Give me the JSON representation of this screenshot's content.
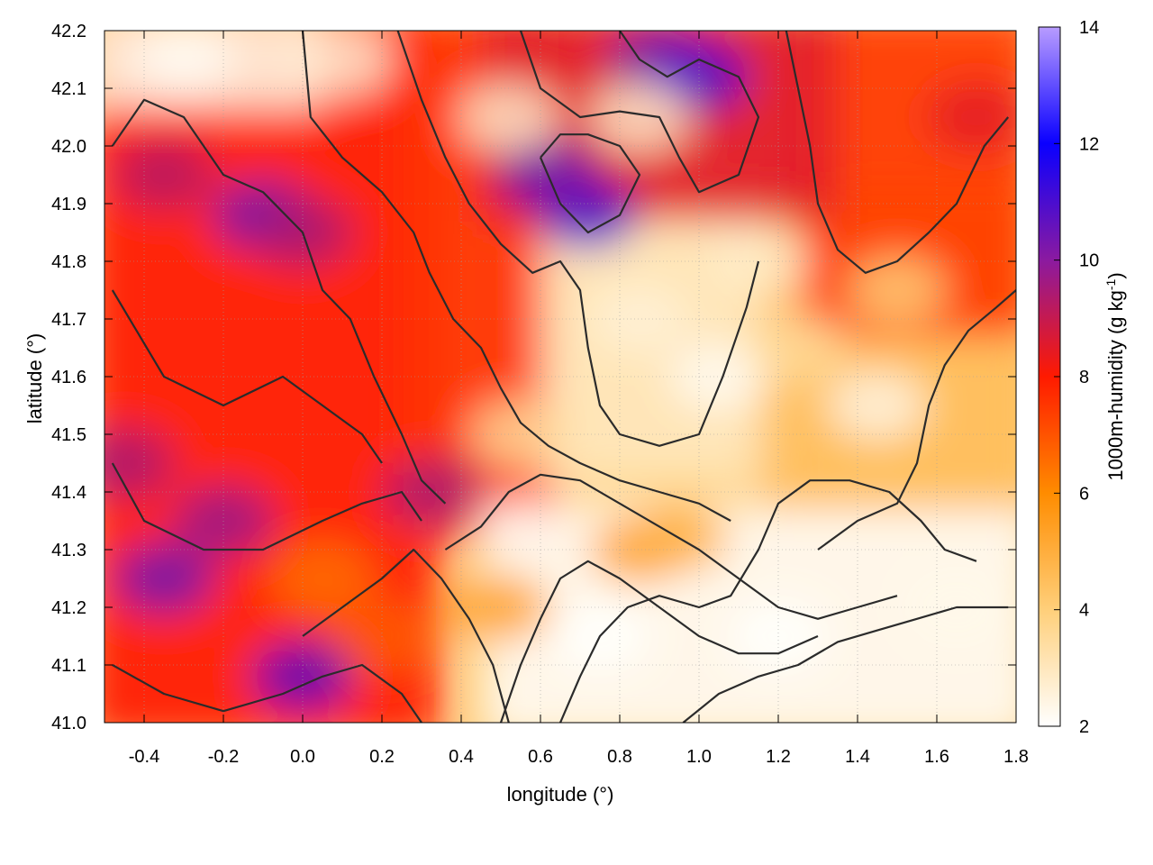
{
  "chart_data": {
    "type": "heatmap",
    "title": "",
    "xlabel": "longitude (°)",
    "ylabel": "latitude (°)",
    "xlim": [
      -0.5,
      1.8
    ],
    "ylim": [
      41.0,
      42.2
    ],
    "x_ticks": [
      -0.4,
      -0.2,
      0.0,
      0.2,
      0.4,
      0.6,
      0.8,
      1.0,
      1.2,
      1.4,
      1.6,
      1.8
    ],
    "x_tick_labels": [
      "-0.4",
      "-0.2",
      "0.0",
      "0.2",
      "0.4",
      "0.6",
      "0.8",
      "1.0",
      "1.2",
      "1.4",
      "1.6",
      "1.8"
    ],
    "y_ticks": [
      41.0,
      41.1,
      41.2,
      41.3,
      41.4,
      41.5,
      41.6,
      41.7,
      41.8,
      41.9,
      42.0,
      42.1,
      42.2
    ],
    "y_tick_labels": [
      "41.0",
      "41.1",
      "41.2",
      "41.3",
      "41.4",
      "41.5",
      "41.6",
      "41.7",
      "41.8",
      "41.9",
      "42.0",
      "42.1",
      "42.2"
    ],
    "grid": true,
    "colorbar": {
      "label_main": "1000m-humidity (g kg",
      "label_sup": "-1",
      "label_end": ")",
      "range": [
        2,
        14
      ],
      "ticks": [
        2,
        4,
        6,
        8,
        10,
        12,
        14
      ],
      "tick_labels": [
        "2",
        "4",
        "6",
        "8",
        "10",
        "12",
        "14"
      ],
      "colors": [
        {
          "v": 2,
          "c": "#ffffff"
        },
        {
          "v": 4,
          "c": "#ffcf7a"
        },
        {
          "v": 6,
          "c": "#ff8c00"
        },
        {
          "v": 8,
          "c": "#ff1a00"
        },
        {
          "v": 10,
          "c": "#8b1aa0"
        },
        {
          "v": 12,
          "c": "#0a00ff"
        },
        {
          "v": 14,
          "c": "#b89cff"
        }
      ]
    },
    "field_regions": [
      {
        "lon": [
          -0.5,
          0.3
        ],
        "lat": [
          41.0,
          42.2
        ],
        "level": 8.0
      },
      {
        "lon": [
          0.3,
          0.6
        ],
        "lat": [
          41.35,
          42.2
        ],
        "level": 7.6
      },
      {
        "lon": [
          0.5,
          1.8
        ],
        "lat": [
          41.0,
          41.35
        ],
        "level": 2.2
      },
      {
        "lon": [
          0.65,
          1.2
        ],
        "lat": [
          41.45,
          41.9
        ],
        "level": 3.0
      },
      {
        "lon": [
          1.2,
          1.8
        ],
        "lat": [
          41.4,
          41.9
        ],
        "level": 4.5
      },
      {
        "lon": [
          1.3,
          1.8
        ],
        "lat": [
          41.7,
          42.2
        ],
        "level": 7.5
      },
      {
        "lon": [
          0.5,
          1.3
        ],
        "lat": [
          41.9,
          42.2
        ],
        "level": 8.5
      },
      {
        "lon": [
          -0.5,
          0.0
        ],
        "lat": [
          42.1,
          42.2
        ],
        "level": 2.5
      }
    ],
    "field_features": [
      {
        "lon": -0.35,
        "lat": 41.25,
        "level": 10.5
      },
      {
        "lon": -0.2,
        "lat": 41.35,
        "level": 9.8
      },
      {
        "lon": -0.45,
        "lat": 41.45,
        "level": 9.5
      },
      {
        "lon": 0.0,
        "lat": 41.08,
        "level": 10.8
      },
      {
        "lon": -0.1,
        "lat": 41.88,
        "level": 10.5
      },
      {
        "lon": 0.0,
        "lat": 41.85,
        "level": 9.5
      },
      {
        "lon": -0.35,
        "lat": 41.95,
        "level": 9.3
      },
      {
        "lon": 0.33,
        "lat": 41.4,
        "level": 9.5
      },
      {
        "lon": 0.72,
        "lat": 41.88,
        "level": 11.0
      },
      {
        "lon": 0.62,
        "lat": 41.95,
        "level": 10.5
      },
      {
        "lon": 0.9,
        "lat": 42.15,
        "level": 10.3
      },
      {
        "lon": 1.0,
        "lat": 42.12,
        "level": 11.0
      },
      {
        "lon": 1.7,
        "lat": 42.05,
        "level": 8.5
      },
      {
        "lon": -0.3,
        "lat": 42.15,
        "level": 2.2
      },
      {
        "lon": 0.1,
        "lat": 42.15,
        "level": 2.6
      },
      {
        "lon": 0.85,
        "lat": 42.05,
        "level": 2.8
      },
      {
        "lon": 0.52,
        "lat": 42.05,
        "level": 2.8
      },
      {
        "lon": 1.05,
        "lat": 41.6,
        "level": 2.2
      },
      {
        "lon": 0.85,
        "lat": 41.7,
        "level": 2.6
      },
      {
        "lon": 1.45,
        "lat": 41.55,
        "level": 2.4
      },
      {
        "lon": 1.2,
        "lat": 41.15,
        "level": 2.0
      },
      {
        "lon": 0.75,
        "lat": 41.15,
        "level": 2.0
      },
      {
        "lon": 1.65,
        "lat": 41.2,
        "level": 2.3
      },
      {
        "lon": 0.5,
        "lat": 41.2,
        "level": 5.5
      },
      {
        "lon": 0.85,
        "lat": 41.3,
        "level": 5.5
      },
      {
        "lon": 0.95,
        "lat": 41.32,
        "level": 5.0
      },
      {
        "lon": 1.15,
        "lat": 41.8,
        "level": 2.8
      },
      {
        "lon": 1.25,
        "lat": 41.65,
        "level": 3.5
      },
      {
        "lon": 1.5,
        "lat": 41.75,
        "level": 4.0
      },
      {
        "lon": 0.05,
        "lat": 41.25,
        "level": 6.5
      },
      {
        "lon": 0.2,
        "lat": 41.15,
        "level": 6.8
      },
      {
        "lon": 0.55,
        "lat": 41.5,
        "level": 3.5
      }
    ],
    "contours": [
      [
        [
          -0.48,
          41.45
        ],
        [
          -0.4,
          41.35
        ],
        [
          -0.25,
          41.3
        ],
        [
          -0.1,
          41.3
        ],
        [
          0.05,
          41.35
        ],
        [
          0.15,
          41.38
        ],
        [
          0.25,
          41.4
        ],
        [
          0.3,
          41.35
        ]
      ],
      [
        [
          -0.48,
          41.75
        ],
        [
          -0.35,
          41.6
        ],
        [
          -0.2,
          41.55
        ],
        [
          -0.05,
          41.6
        ],
        [
          0.05,
          41.55
        ],
        [
          0.15,
          41.5
        ],
        [
          0.2,
          41.45
        ]
      ],
      [
        [
          -0.48,
          42.0
        ],
        [
          -0.4,
          42.08
        ],
        [
          -0.3,
          42.05
        ],
        [
          -0.2,
          41.95
        ],
        [
          -0.1,
          41.92
        ],
        [
          0.0,
          41.85
        ],
        [
          0.05,
          41.75
        ],
        [
          0.12,
          41.7
        ],
        [
          0.18,
          41.6
        ],
        [
          0.25,
          41.5
        ],
        [
          0.3,
          41.42
        ],
        [
          0.36,
          41.38
        ]
      ],
      [
        [
          0.0,
          42.2
        ],
        [
          0.02,
          42.05
        ],
        [
          0.1,
          41.98
        ],
        [
          0.2,
          41.92
        ],
        [
          0.28,
          41.85
        ],
        [
          0.32,
          41.78
        ],
        [
          0.38,
          41.7
        ],
        [
          0.45,
          41.65
        ],
        [
          0.5,
          41.58
        ],
        [
          0.55,
          41.52
        ],
        [
          0.62,
          41.48
        ],
        [
          0.7,
          41.45
        ],
        [
          0.8,
          41.42
        ],
        [
          0.9,
          41.4
        ],
        [
          1.0,
          41.38
        ],
        [
          1.08,
          41.35
        ]
      ],
      [
        [
          0.24,
          42.2
        ],
        [
          0.3,
          42.08
        ],
        [
          0.36,
          41.98
        ],
        [
          0.42,
          41.9
        ],
        [
          0.5,
          41.83
        ],
        [
          0.58,
          41.78
        ],
        [
          0.65,
          41.8
        ],
        [
          0.7,
          41.75
        ],
        [
          0.72,
          41.65
        ],
        [
          0.75,
          41.55
        ],
        [
          0.8,
          41.5
        ],
        [
          0.9,
          41.48
        ],
        [
          1.0,
          41.5
        ],
        [
          1.06,
          41.6
        ],
        [
          1.12,
          41.72
        ],
        [
          1.15,
          41.8
        ]
      ],
      [
        [
          0.36,
          41.3
        ],
        [
          0.45,
          41.34
        ],
        [
          0.52,
          41.4
        ],
        [
          0.6,
          41.43
        ],
        [
          0.7,
          41.42
        ],
        [
          0.8,
          41.38
        ],
        [
          0.9,
          41.34
        ],
        [
          1.0,
          41.3
        ],
        [
          1.1,
          41.25
        ],
        [
          1.2,
          41.2
        ],
        [
          1.3,
          41.18
        ],
        [
          1.4,
          41.2
        ],
        [
          1.5,
          41.22
        ]
      ],
      [
        [
          0.5,
          41.0
        ],
        [
          0.55,
          41.1
        ],
        [
          0.6,
          41.18
        ],
        [
          0.65,
          41.25
        ],
        [
          0.72,
          41.28
        ],
        [
          0.8,
          41.25
        ],
        [
          0.9,
          41.2
        ],
        [
          1.0,
          41.15
        ],
        [
          1.1,
          41.12
        ],
        [
          1.2,
          41.12
        ],
        [
          1.3,
          41.15
        ]
      ],
      [
        [
          0.65,
          41.0
        ],
        [
          0.7,
          41.08
        ],
        [
          0.75,
          41.15
        ],
        [
          0.82,
          41.2
        ],
        [
          0.9,
          41.22
        ],
        [
          1.0,
          41.2
        ],
        [
          1.08,
          41.22
        ],
        [
          1.15,
          41.3
        ],
        [
          1.2,
          41.38
        ],
        [
          1.28,
          41.42
        ],
        [
          1.38,
          41.42
        ],
        [
          1.48,
          41.4
        ],
        [
          1.56,
          41.35
        ],
        [
          1.62,
          41.3
        ],
        [
          1.7,
          41.28
        ]
      ],
      [
        [
          0.96,
          41.0
        ],
        [
          1.05,
          41.05
        ],
        [
          1.15,
          41.08
        ],
        [
          1.25,
          41.1
        ],
        [
          1.35,
          41.14
        ],
        [
          1.45,
          41.16
        ],
        [
          1.55,
          41.18
        ],
        [
          1.65,
          41.2
        ],
        [
          1.78,
          41.2
        ]
      ],
      [
        [
          1.3,
          41.3
        ],
        [
          1.4,
          41.35
        ],
        [
          1.5,
          41.38
        ],
        [
          1.55,
          41.45
        ],
        [
          1.58,
          41.55
        ],
        [
          1.62,
          41.62
        ],
        [
          1.68,
          41.68
        ],
        [
          1.75,
          41.72
        ],
        [
          1.8,
          41.75
        ]
      ],
      [
        [
          1.22,
          42.2
        ],
        [
          1.25,
          42.1
        ],
        [
          1.28,
          42.0
        ],
        [
          1.3,
          41.9
        ],
        [
          1.35,
          41.82
        ],
        [
          1.42,
          41.78
        ],
        [
          1.5,
          41.8
        ],
        [
          1.58,
          41.85
        ],
        [
          1.65,
          41.9
        ],
        [
          1.72,
          42.0
        ],
        [
          1.78,
          42.05
        ]
      ],
      [
        [
          0.55,
          42.2
        ],
        [
          0.6,
          42.1
        ],
        [
          0.7,
          42.05
        ],
        [
          0.8,
          42.06
        ],
        [
          0.9,
          42.05
        ],
        [
          0.95,
          41.98
        ],
        [
          1.0,
          41.92
        ],
        [
          1.1,
          41.95
        ],
        [
          1.15,
          42.05
        ],
        [
          1.1,
          42.12
        ],
        [
          1.0,
          42.15
        ],
        [
          0.92,
          42.12
        ],
        [
          0.85,
          42.15
        ],
        [
          0.8,
          42.2
        ]
      ],
      [
        [
          0.0,
          41.15
        ],
        [
          0.1,
          41.2
        ],
        [
          0.2,
          41.25
        ],
        [
          0.28,
          41.3
        ],
        [
          0.35,
          41.25
        ],
        [
          0.42,
          41.18
        ],
        [
          0.48,
          41.1
        ],
        [
          0.52,
          41.0
        ]
      ],
      [
        [
          0.6,
          41.98
        ],
        [
          0.65,
          41.9
        ],
        [
          0.72,
          41.85
        ],
        [
          0.8,
          41.88
        ],
        [
          0.85,
          41.95
        ],
        [
          0.8,
          42.0
        ],
        [
          0.72,
          42.02
        ],
        [
          0.65,
          42.02
        ],
        [
          0.6,
          41.98
        ]
      ],
      [
        [
          -0.48,
          41.1
        ],
        [
          -0.35,
          41.05
        ],
        [
          -0.2,
          41.02
        ],
        [
          -0.05,
          41.05
        ],
        [
          0.05,
          41.08
        ],
        [
          0.15,
          41.1
        ],
        [
          0.25,
          41.05
        ],
        [
          0.3,
          41.0
        ]
      ]
    ]
  }
}
